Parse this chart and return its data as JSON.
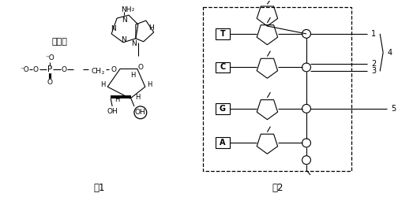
{
  "fig1_label": "图1",
  "fig2_label": "图2",
  "base_label": "腺嘌呤",
  "bases_fig2": [
    "T",
    "C",
    "G",
    "A"
  ],
  "bg_color": "#ffffff",
  "line_color": "#000000"
}
